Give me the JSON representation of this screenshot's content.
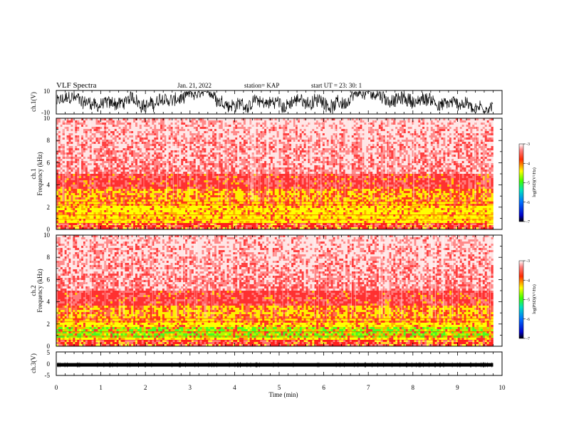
{
  "header": {
    "title": "VLF Spectra",
    "date": "Jan. 21, 2022",
    "station": "station= KAP",
    "start": "start  UT =   23: 30: 1"
  },
  "chart_data": [
    {
      "type": "line",
      "name": "ch1-waveform",
      "ylabel": "ch.1(V)",
      "ylim": [
        -10,
        10
      ],
      "yticks": [
        "10",
        "-10"
      ],
      "xlim": [
        0,
        10
      ],
      "data_end": 9.8,
      "description_value": "noisy voltage trace oscillating roughly between -8 and 8 V"
    },
    {
      "type": "heatmap",
      "name": "ch1-spectrogram",
      "ylabel": "ch.1 Frequency  (kHz)",
      "ylim": [
        0,
        10
      ],
      "yticks": [
        "0",
        "2",
        "4",
        "6",
        "8",
        "10"
      ],
      "xlim": [
        0,
        10
      ],
      "data_end": 9.8,
      "colorbar": {
        "label": "log(PSD)(V²/Hz)",
        "range": [
          -7,
          -3
        ],
        "ticks": [
          "-3",
          "-4",
          "-5",
          "-6",
          "-7"
        ]
      }
    },
    {
      "type": "heatmap",
      "name": "ch2-spectrogram",
      "ylabel": "ch.2 Frequency  (kHz)",
      "ylim": [
        0,
        10
      ],
      "yticks": [
        "0",
        "2",
        "4",
        "6",
        "8",
        "10"
      ],
      "xlim": [
        0,
        10
      ],
      "data_end": 9.8,
      "colorbar": {
        "label": "log(PSD)(V²/Hz)",
        "range": [
          -7,
          -3
        ],
        "ticks": [
          "-3",
          "-4",
          "-5",
          "-6",
          "-7"
        ]
      }
    },
    {
      "type": "line",
      "name": "ch3-waveform",
      "ylabel": "ch.3(V)",
      "ylim": [
        -5,
        5
      ],
      "yticks": [
        "5",
        "0",
        "-5"
      ],
      "xlim": [
        0,
        10
      ],
      "data_end": 9.8,
      "level": -0.5
    }
  ],
  "xaxis": {
    "label": "Time  (min)",
    "ticks": [
      "0",
      "1",
      "2",
      "3",
      "4",
      "5",
      "6",
      "7",
      "8",
      "9",
      "10"
    ]
  },
  "colors": {
    "trace": "#000000",
    "spec_low": "#ff2a2a",
    "spec_mid": "#ffff00",
    "spec_green": "#33ff33",
    "spec_white": "#ffffff"
  }
}
